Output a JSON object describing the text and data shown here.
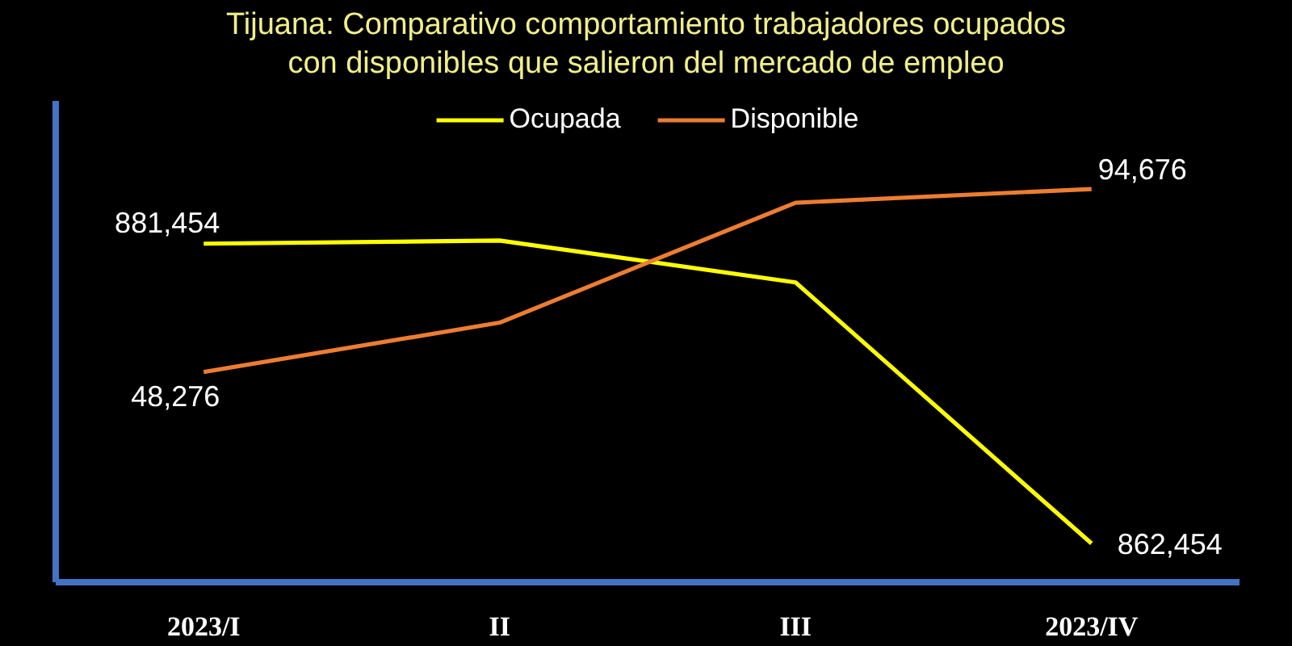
{
  "chart_data": {
    "type": "line",
    "title": "Tijuana: Comparativo comportamiento trabajadores ocupados con disponibles que salieron del mercado de empleo",
    "categories": [
      "2023/I",
      "II",
      "III",
      "2023/IV"
    ],
    "series": [
      {
        "name": "Ocupada",
        "color": "#ffff00",
        "values": [
          881454,
          881650,
          879000,
          862454
        ],
        "value_labels": [
          "881,454",
          null,
          null,
          "862,454"
        ]
      },
      {
        "name": "Disponible",
        "color": "#ed7d31",
        "axis": "y2",
        "values": [
          48276,
          60800,
          91200,
          94676
        ],
        "value_labels": [
          "48,276",
          null,
          null,
          "94,676"
        ]
      }
    ],
    "ylim": [
      860000,
      890500
    ],
    "y2lim": [
      -5000,
      117000
    ],
    "tick_labels": "x",
    "legend": "top"
  }
}
